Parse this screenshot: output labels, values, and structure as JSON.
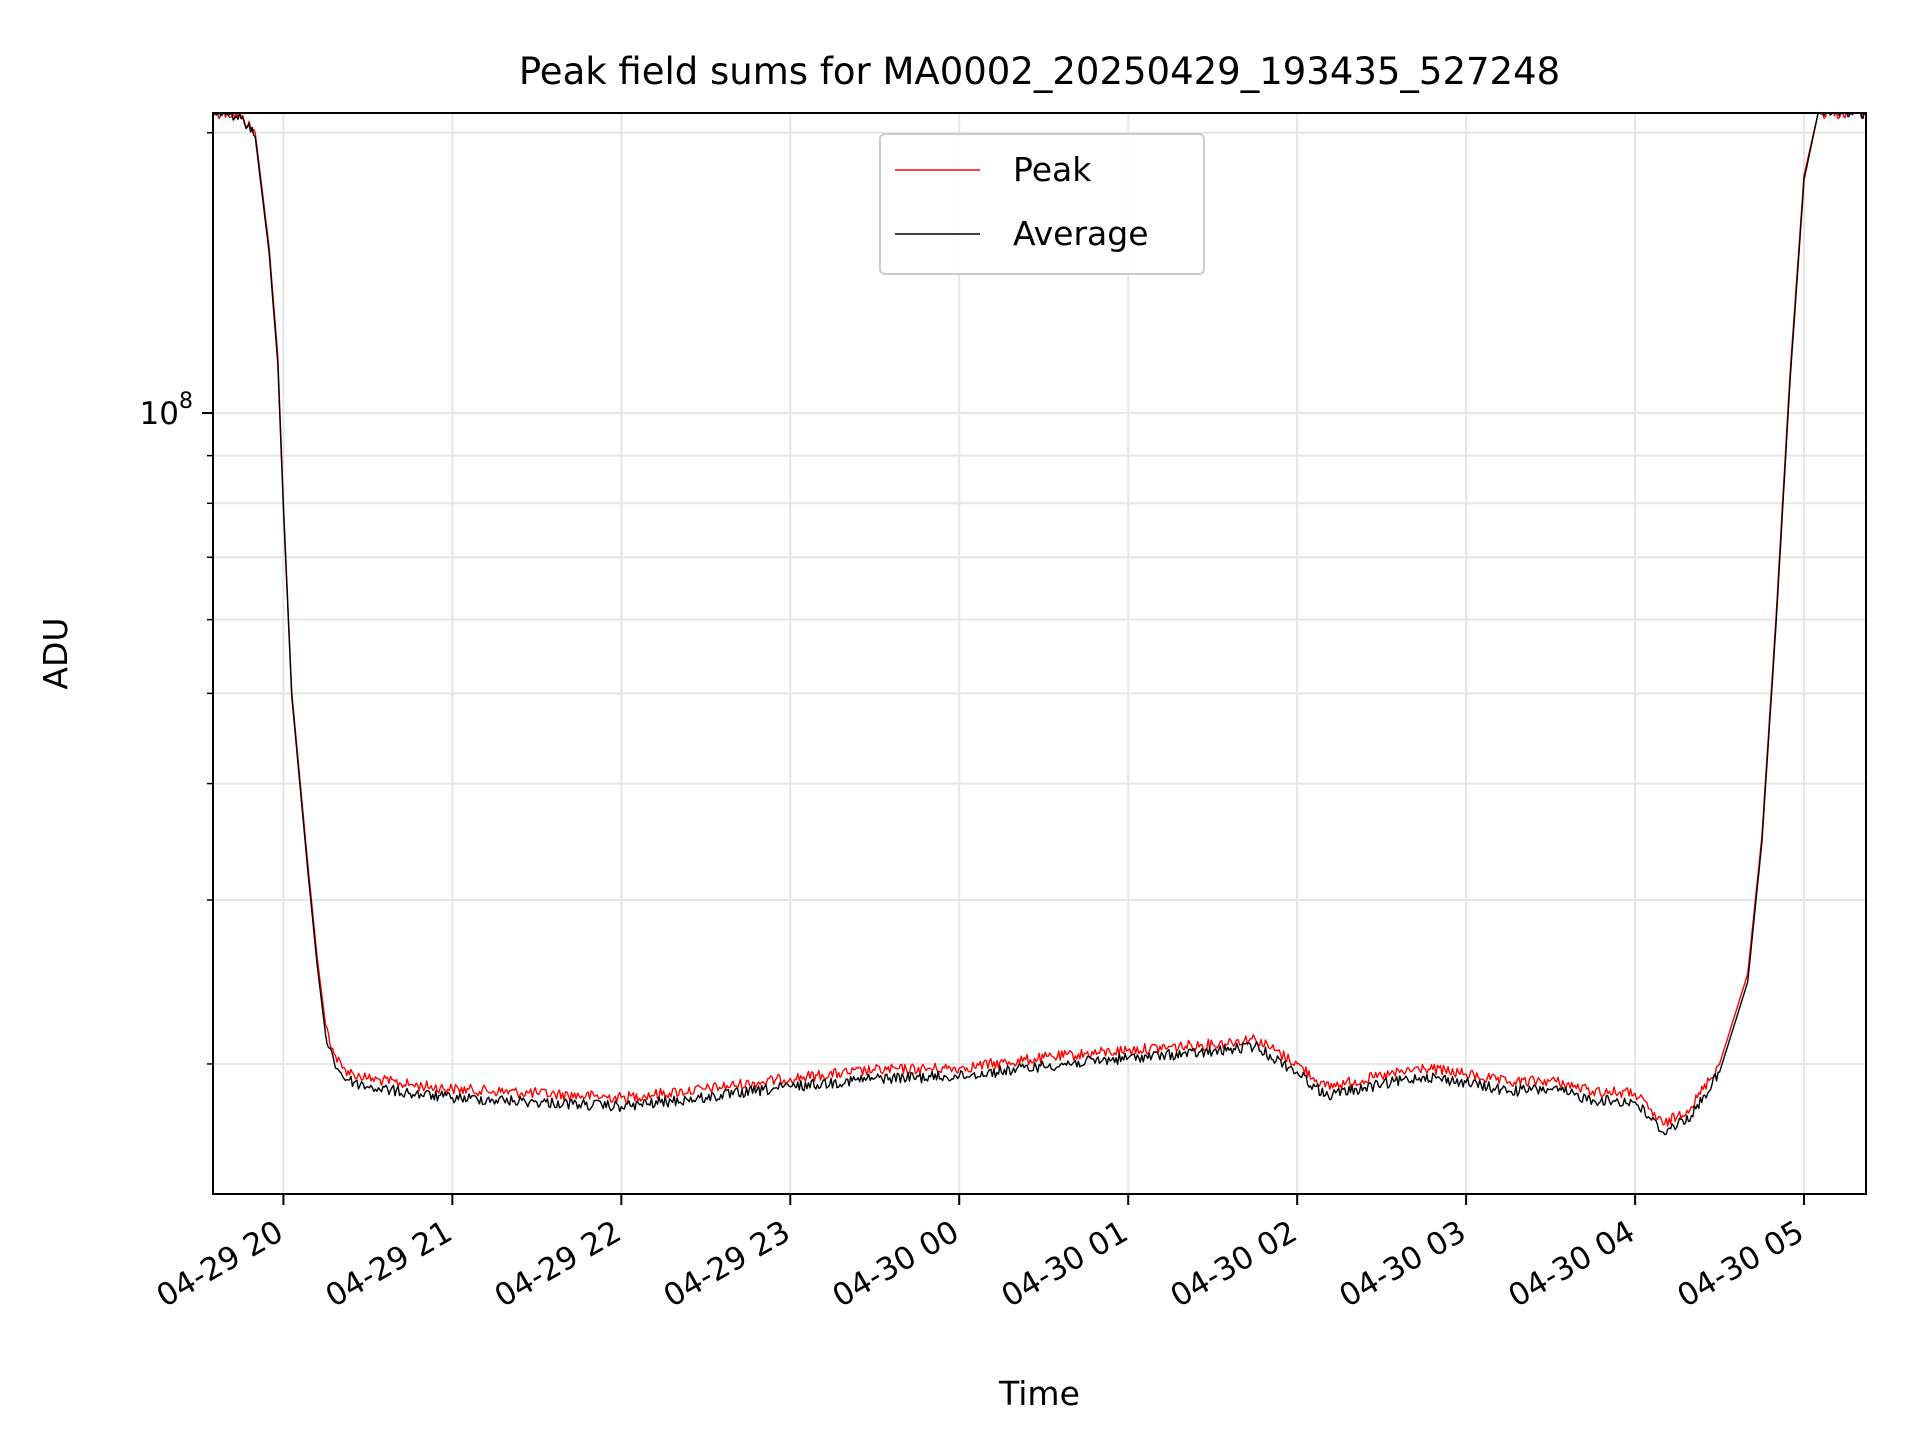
{
  "chart_data": {
    "type": "line",
    "title": "Peak field sums for MA0002_20250429_193435_527248",
    "xlabel": "Time",
    "ylabel": "ADU",
    "yscale": "log",
    "grid": true,
    "legend_position": "upper-center",
    "xlim": [
      "2025-04-29 19:35",
      "2025-04-30 05:22"
    ],
    "ylim": [
      14500000,
      210000000
    ],
    "x_ticks": [
      "2025-04-29 20:00",
      "2025-04-29 21:00",
      "2025-04-29 22:00",
      "2025-04-29 23:00",
      "2025-04-30 00:00",
      "2025-04-30 01:00",
      "2025-04-30 02:00",
      "2025-04-30 03:00",
      "2025-04-30 04:00",
      "2025-04-30 05:00"
    ],
    "x_tick_labels": [
      "04-29 20",
      "04-29 21",
      "04-29 22",
      "04-29 23",
      "04-30 00",
      "04-30 01",
      "04-30 02",
      "04-30 03",
      "04-30 04",
      "04-30 05"
    ],
    "y_major_ticks": [
      {
        "value": 100000000,
        "base": "10",
        "exp": "8"
      }
    ],
    "y_minor_ticks": [
      20000000,
      30000000,
      40000000,
      50000000,
      60000000,
      70000000,
      80000000,
      90000000,
      200000000
    ],
    "series": [
      {
        "name": "Peak",
        "color": "#ff0000",
        "x": [
          "2025-04-29 19:35",
          "2025-04-29 19:40",
          "2025-04-29 19:45",
          "2025-04-29 19:50",
          "2025-04-29 19:55",
          "2025-04-29 19:58",
          "2025-04-29 20:00",
          "2025-04-29 20:03",
          "2025-04-29 20:06",
          "2025-04-29 20:09",
          "2025-04-29 20:12",
          "2025-04-29 20:15",
          "2025-04-29 20:18",
          "2025-04-29 20:21",
          "2025-04-29 20:25",
          "2025-04-29 20:30",
          "2025-04-29 20:45",
          "2025-04-29 21:00",
          "2025-04-29 21:30",
          "2025-04-29 22:00",
          "2025-04-29 22:30",
          "2025-04-29 23:00",
          "2025-04-29 23:30",
          "2025-04-30 00:00",
          "2025-04-30 00:30",
          "2025-04-30 01:00",
          "2025-04-30 01:30",
          "2025-04-30 01:45",
          "2025-04-30 02:00",
          "2025-04-30 02:10",
          "2025-04-30 02:30",
          "2025-04-30 02:45",
          "2025-04-30 03:00",
          "2025-04-30 03:15",
          "2025-04-30 03:30",
          "2025-04-30 03:45",
          "2025-04-30 04:00",
          "2025-04-30 04:10",
          "2025-04-30 04:20",
          "2025-04-30 04:30",
          "2025-04-30 04:40",
          "2025-04-30 04:45",
          "2025-04-30 04:50",
          "2025-04-30 04:55",
          "2025-04-30 05:00",
          "2025-04-30 05:05",
          "2025-04-30 05:22"
        ],
        "values": [
          210000000,
          210000000,
          208000000,
          200000000,
          150000000,
          115000000,
          80000000,
          50000000,
          40000000,
          32000000,
          26000000,
          22000000,
          20500000,
          19800000,
          19500000,
          19300000,
          19000000,
          18800000,
          18600000,
          18400000,
          18800000,
          19300000,
          19700000,
          19800000,
          20300000,
          20700000,
          21000000,
          21300000,
          20000000,
          18900000,
          19400000,
          19800000,
          19500000,
          19100000,
          19200000,
          18700000,
          18600000,
          17200000,
          18000000,
          20000000,
          25000000,
          35000000,
          60000000,
          110000000,
          180000000,
          210000000,
          210000000
        ]
      },
      {
        "name": "Average",
        "color": "#000000",
        "x": [
          "2025-04-29 19:35",
          "2025-04-29 19:40",
          "2025-04-29 19:45",
          "2025-04-29 19:50",
          "2025-04-29 19:55",
          "2025-04-29 19:58",
          "2025-04-29 20:00",
          "2025-04-29 20:03",
          "2025-04-29 20:06",
          "2025-04-29 20:09",
          "2025-04-29 20:12",
          "2025-04-29 20:15",
          "2025-04-29 20:18",
          "2025-04-29 20:21",
          "2025-04-29 20:25",
          "2025-04-29 20:30",
          "2025-04-29 20:45",
          "2025-04-29 21:00",
          "2025-04-29 21:30",
          "2025-04-29 22:00",
          "2025-04-29 22:30",
          "2025-04-29 23:00",
          "2025-04-29 23:30",
          "2025-04-30 00:00",
          "2025-04-30 00:30",
          "2025-04-30 01:00",
          "2025-04-30 01:30",
          "2025-04-30 01:45",
          "2025-04-30 02:00",
          "2025-04-30 02:10",
          "2025-04-30 02:30",
          "2025-04-30 02:45",
          "2025-04-30 03:00",
          "2025-04-30 03:15",
          "2025-04-30 03:30",
          "2025-04-30 03:45",
          "2025-04-30 04:00",
          "2025-04-30 04:10",
          "2025-04-30 04:20",
          "2025-04-30 04:30",
          "2025-04-30 04:40",
          "2025-04-30 04:45",
          "2025-04-30 04:50",
          "2025-04-30 04:55",
          "2025-04-30 05:00",
          "2025-04-30 05:05",
          "2025-04-30 05:22"
        ],
        "values": [
          210000000,
          210000000,
          207000000,
          198000000,
          148000000,
          113000000,
          79000000,
          49500000,
          39500000,
          31500000,
          25500000,
          21500000,
          20100000,
          19400000,
          19100000,
          18900000,
          18600000,
          18400000,
          18200000,
          18000000,
          18400000,
          18900000,
          19300000,
          19400000,
          19900000,
          20300000,
          20600000,
          20900000,
          19600000,
          18500000,
          19000000,
          19400000,
          19100000,
          18700000,
          18800000,
          18300000,
          18200000,
          16900000,
          17600000,
          19600000,
          24500000,
          34500000,
          59000000,
          108000000,
          178000000,
          210000000,
          210000000
        ]
      }
    ]
  }
}
